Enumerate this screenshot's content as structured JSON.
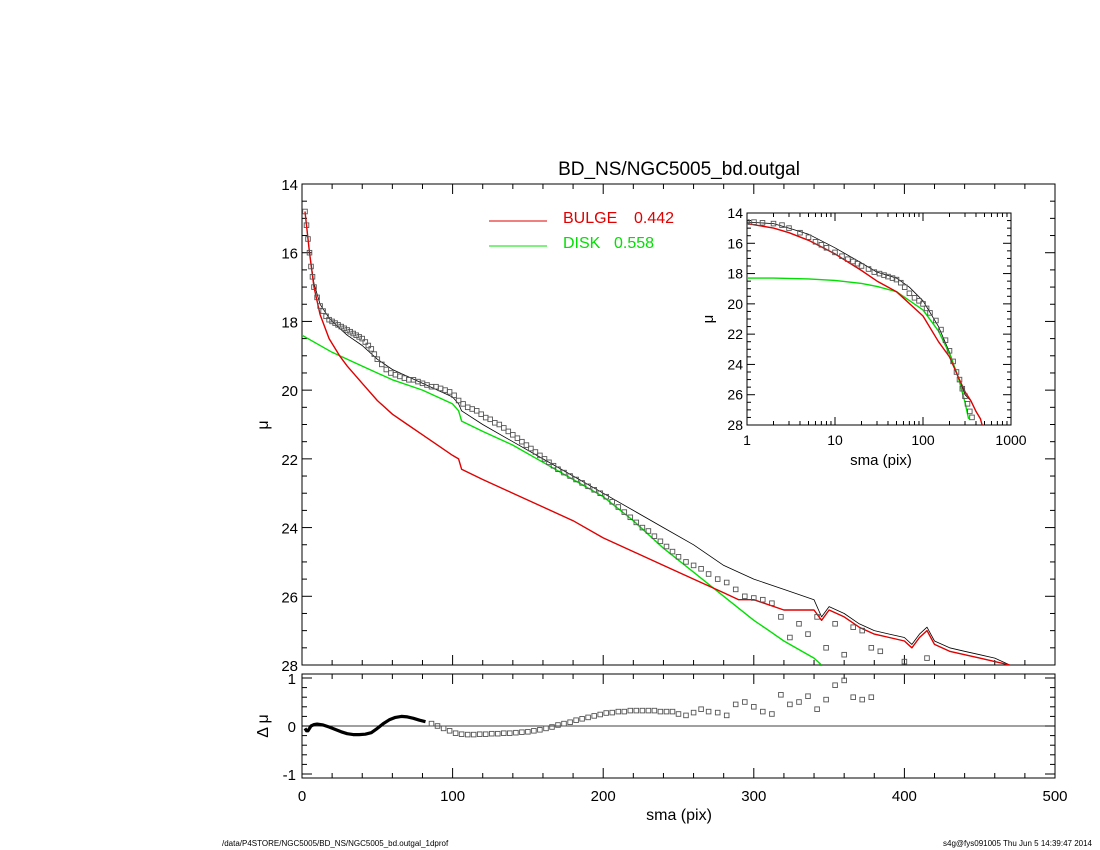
{
  "chart_data": [
    {
      "type": "line",
      "panel": "main",
      "title": "BD_NS/NGC5005_bd.outgal",
      "ylabel": "μ",
      "xlim": [
        0,
        500
      ],
      "ylim": [
        28,
        14
      ],
      "y_inverted": true,
      "yticks": [
        14,
        16,
        18,
        20,
        22,
        24,
        26,
        28
      ],
      "legend": [
        {
          "name": "BULGE",
          "value": "0.442",
          "color": "#e00000"
        },
        {
          "name": "DISK",
          "value": "0.558",
          "color": "#00e000"
        }
      ],
      "series": [
        {
          "name": "BULGE",
          "color": "#e00000",
          "style": "line",
          "x": [
            2,
            5,
            8,
            12,
            18,
            25,
            30,
            40,
            50,
            60,
            70,
            80,
            90,
            100,
            104,
            106,
            120,
            140,
            160,
            180,
            200,
            220,
            240,
            260,
            280,
            290,
            300,
            320,
            340,
            345,
            350,
            360,
            370,
            380,
            390,
            400,
            405,
            410,
            415,
            420,
            430,
            440,
            450,
            460,
            470
          ],
          "y": [
            14.8,
            16.0,
            17.0,
            17.8,
            18.5,
            19.0,
            19.3,
            19.8,
            20.3,
            20.7,
            21.0,
            21.3,
            21.6,
            21.9,
            22.0,
            22.3,
            22.6,
            23.0,
            23.4,
            23.8,
            24.3,
            24.7,
            25.1,
            25.5,
            25.9,
            26.1,
            26.1,
            26.4,
            26.4,
            26.7,
            26.4,
            26.6,
            26.9,
            27.1,
            27.2,
            27.3,
            27.5,
            27.2,
            27.0,
            27.4,
            27.6,
            27.7,
            27.8,
            27.9,
            28.1
          ]
        },
        {
          "name": "DISK",
          "color": "#00e000",
          "style": "line",
          "x": [
            0,
            20,
            40,
            60,
            80,
            100,
            104,
            106,
            120,
            140,
            160,
            180,
            200,
            220,
            240,
            260,
            280,
            300,
            310,
            320,
            340,
            345
          ],
          "y": [
            18.4,
            18.9,
            19.3,
            19.7,
            20.0,
            20.4,
            20.6,
            20.9,
            21.2,
            21.6,
            22.1,
            22.6,
            23.1,
            23.8,
            24.6,
            25.3,
            26.0,
            26.7,
            27.0,
            27.3,
            27.8,
            28.1
          ]
        },
        {
          "name": "model",
          "color": "#000000",
          "style": "thin-line",
          "x": [
            2,
            5,
            8,
            12,
            18,
            25,
            30,
            40,
            50,
            60,
            70,
            80,
            90,
            100,
            104,
            106,
            120,
            140,
            160,
            180,
            200,
            220,
            240,
            260,
            280,
            290,
            300,
            320,
            340,
            345,
            350,
            360,
            370,
            380,
            390,
            400,
            405,
            410,
            415,
            420,
            430,
            440,
            450,
            460,
            470
          ],
          "y": [
            14.8,
            16.0,
            16.9,
            17.5,
            17.9,
            18.2,
            18.4,
            18.7,
            19.1,
            19.4,
            19.6,
            19.8,
            20.0,
            20.2,
            20.4,
            20.6,
            21.0,
            21.5,
            22.0,
            22.5,
            23.0,
            23.5,
            24.0,
            24.5,
            25.1,
            25.3,
            25.5,
            25.8,
            26.1,
            26.6,
            26.3,
            26.5,
            26.8,
            27.0,
            27.1,
            27.2,
            27.4,
            27.1,
            26.9,
            27.3,
            27.5,
            27.6,
            27.7,
            27.8,
            28.0
          ]
        },
        {
          "name": "data",
          "color": "#555555",
          "style": "square-markers",
          "x": [
            2,
            3,
            4,
            5,
            6,
            7,
            8,
            10,
            12,
            14,
            16,
            18,
            20,
            22,
            24,
            26,
            28,
            30,
            32,
            34,
            36,
            38,
            40,
            42,
            44,
            46,
            48,
            50,
            53,
            56,
            59,
            62,
            65,
            68,
            71,
            74,
            77,
            80,
            83,
            86,
            89,
            92,
            95,
            98,
            101,
            104,
            107,
            110,
            113,
            116,
            119,
            122,
            125,
            128,
            131,
            134,
            137,
            140,
            143,
            146,
            149,
            152,
            155,
            158,
            161,
            164,
            167,
            170,
            174,
            178,
            182,
            186,
            190,
            194,
            198,
            202,
            206,
            210,
            214,
            218,
            222,
            226,
            230,
            234,
            238,
            242,
            246,
            250,
            255,
            260,
            265,
            270,
            276,
            282,
            288,
            294,
            300,
            306,
            312,
            318,
            324,
            330,
            336,
            342,
            348,
            354,
            360,
            366,
            372,
            378,
            384,
            400,
            415
          ],
          "y": [
            14.8,
            15.2,
            15.6,
            16.0,
            16.4,
            16.7,
            17.0,
            17.3,
            17.55,
            17.7,
            17.85,
            17.95,
            18.0,
            18.05,
            18.1,
            18.15,
            18.2,
            18.25,
            18.3,
            18.35,
            18.4,
            18.45,
            18.5,
            18.6,
            18.7,
            18.8,
            18.95,
            19.1,
            19.25,
            19.4,
            19.5,
            19.55,
            19.6,
            19.65,
            19.7,
            19.7,
            19.75,
            19.8,
            19.85,
            19.9,
            19.9,
            19.95,
            20.0,
            20.05,
            20.15,
            20.3,
            20.4,
            20.5,
            20.55,
            20.6,
            20.7,
            20.8,
            20.85,
            20.95,
            21.0,
            21.1,
            21.2,
            21.3,
            21.4,
            21.5,
            21.6,
            21.7,
            21.8,
            21.9,
            22.0,
            22.1,
            22.2,
            22.3,
            22.4,
            22.5,
            22.6,
            22.7,
            22.8,
            22.9,
            23.0,
            23.1,
            23.25,
            23.4,
            23.55,
            23.7,
            23.85,
            24.0,
            24.1,
            24.25,
            24.4,
            24.55,
            24.7,
            24.85,
            25.0,
            25.1,
            25.2,
            25.35,
            25.5,
            25.6,
            25.8,
            26.0,
            26.05,
            26.1,
            26.2,
            26.6,
            27.2,
            26.8,
            27.1,
            26.6,
            27.5,
            26.8,
            27.7,
            26.9,
            27.0,
            27.5,
            27.6,
            27.9,
            27.8
          ]
        }
      ]
    },
    {
      "type": "line",
      "panel": "inset",
      "xlabel": "sma (pix)",
      "ylabel": "μ",
      "xscale": "log",
      "xlim": [
        1,
        1000
      ],
      "xticks": [
        "1",
        "10",
        "100",
        "1000"
      ],
      "ylim": [
        28,
        14
      ],
      "y_inverted": true,
      "yticks": [
        14,
        16,
        18,
        20,
        22,
        24,
        26,
        28
      ],
      "series": [
        {
          "name": "BULGE",
          "color": "#e00000",
          "style": "line",
          "x": [
            1,
            2,
            3,
            5,
            10,
            20,
            30,
            50,
            100,
            150,
            200,
            250,
            300,
            350,
            400,
            450,
            470
          ],
          "y": [
            14.7,
            15.0,
            15.3,
            15.8,
            16.7,
            17.8,
            18.5,
            19.2,
            20.8,
            22.5,
            23.5,
            24.8,
            25.8,
            26.4,
            27.1,
            27.6,
            28.0
          ]
        },
        {
          "name": "DISK",
          "color": "#00e000",
          "style": "line",
          "x": [
            1,
            2,
            5,
            10,
            20,
            30,
            50,
            100,
            150,
            200,
            250,
            300,
            330
          ],
          "y": [
            18.3,
            18.3,
            18.35,
            18.45,
            18.65,
            18.85,
            19.2,
            20.4,
            21.8,
            23.3,
            24.8,
            26.5,
            27.6
          ]
        },
        {
          "name": "model",
          "color": "#000000",
          "style": "thin-line",
          "x": [
            1,
            2,
            3,
            5,
            10,
            20,
            30,
            50,
            70,
            100,
            150,
            200,
            250,
            300,
            350,
            400,
            450,
            470
          ],
          "y": [
            14.6,
            14.7,
            15.0,
            15.4,
            16.3,
            17.3,
            17.9,
            18.3,
            18.9,
            19.8,
            21.5,
            23.2,
            24.8,
            26.0,
            26.4,
            27.1,
            27.6,
            28.0
          ]
        },
        {
          "name": "data",
          "color": "#555555",
          "style": "square-markers",
          "x": [
            1,
            1.2,
            1.5,
            2,
            2.5,
            3,
            4,
            5,
            6,
            7,
            8,
            10,
            12,
            14,
            16,
            18,
            20,
            24,
            28,
            32,
            36,
            40,
            45,
            50,
            56,
            62,
            70,
            80,
            90,
            100,
            110,
            120,
            140,
            160,
            180,
            200,
            220,
            240,
            260,
            280,
            300,
            320,
            340,
            360
          ],
          "y": [
            14.6,
            14.6,
            14.65,
            14.7,
            14.8,
            15.0,
            15.3,
            15.6,
            15.9,
            16.1,
            16.3,
            16.6,
            16.85,
            17.05,
            17.2,
            17.35,
            17.5,
            17.7,
            17.9,
            18.0,
            18.1,
            18.2,
            18.3,
            18.4,
            18.6,
            18.9,
            19.3,
            19.6,
            19.8,
            20.0,
            20.3,
            20.6,
            21.1,
            21.7,
            22.4,
            23.1,
            23.8,
            24.5,
            25.0,
            25.6,
            26.1,
            26.6,
            27.1,
            27.5
          ]
        }
      ]
    },
    {
      "type": "scatter",
      "panel": "residual",
      "xlabel": "sma (pix)",
      "ylabel": "Δ μ",
      "xlim": [
        0,
        500
      ],
      "xticks": [
        0,
        100,
        200,
        300,
        400,
        500
      ],
      "ylim": [
        -1,
        1
      ],
      "yticks": [
        -1,
        0,
        1
      ],
      "reference_line": 0,
      "series": [
        {
          "name": "residual-thick",
          "color": "#000000",
          "style": "thick-line",
          "x": [
            2,
            3,
            4,
            5,
            6,
            8,
            10,
            14,
            18,
            22,
            26,
            30,
            34,
            38,
            42,
            46,
            50,
            54,
            58,
            62,
            66,
            70,
            74,
            78,
            82
          ],
          "y": [
            -0.05,
            -0.1,
            -0.1,
            -0.05,
            0.0,
            0.03,
            0.04,
            0.02,
            -0.02,
            -0.07,
            -0.12,
            -0.16,
            -0.18,
            -0.18,
            -0.17,
            -0.14,
            -0.05,
            0.05,
            0.13,
            0.18,
            0.2,
            0.19,
            0.16,
            0.12,
            0.09
          ]
        },
        {
          "name": "residual",
          "color": "#555555",
          "style": "square-markers",
          "x": [
            86,
            90,
            94,
            98,
            102,
            106,
            110,
            114,
            118,
            122,
            126,
            130,
            134,
            138,
            142,
            146,
            150,
            154,
            158,
            162,
            166,
            170,
            174,
            178,
            182,
            186,
            190,
            194,
            198,
            202,
            206,
            210,
            214,
            218,
            222,
            226,
            230,
            234,
            238,
            242,
            246,
            250,
            255,
            260,
            265,
            270,
            276,
            282,
            288,
            294,
            300,
            306,
            312,
            318,
            324,
            330,
            336,
            342,
            348,
            354,
            360,
            366,
            372,
            378
          ],
          "y": [
            0.05,
            0.0,
            -0.05,
            -0.1,
            -0.15,
            -0.17,
            -0.18,
            -0.18,
            -0.17,
            -0.17,
            -0.16,
            -0.16,
            -0.15,
            -0.15,
            -0.14,
            -0.13,
            -0.12,
            -0.1,
            -0.08,
            -0.05,
            -0.02,
            0.02,
            0.05,
            0.08,
            0.12,
            0.15,
            0.18,
            0.21,
            0.24,
            0.27,
            0.28,
            0.3,
            0.3,
            0.32,
            0.32,
            0.32,
            0.32,
            0.32,
            0.3,
            0.3,
            0.3,
            0.25,
            0.22,
            0.28,
            0.35,
            0.3,
            0.28,
            0.22,
            0.45,
            0.5,
            0.4,
            0.3,
            0.25,
            0.65,
            0.45,
            0.5,
            0.62,
            0.35,
            0.55,
            0.85,
            0.95,
            0.6,
            0.55,
            0.6
          ]
        }
      ]
    }
  ],
  "footer": {
    "left": "/data/P4STORE/NGC5005/BD_NS/NGC5005_bd.outgal_1dprof",
    "right": "s4g@fys091005  Thu Jun  5 14:39:47 2014"
  }
}
